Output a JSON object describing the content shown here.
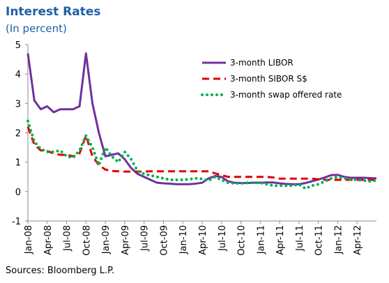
{
  "chart_data": {
    "type": "line",
    "title": "Interest Rates",
    "subtitle": "(In percent)",
    "source": "Sources: Bloomberg L.P.",
    "categories": [
      "Jan-08",
      null,
      null,
      "Apr-08",
      null,
      null,
      "Jul-08",
      null,
      null,
      "Oct-08",
      null,
      null,
      "Jan-09",
      null,
      null,
      "Apr-09",
      null,
      null,
      "Jul-09",
      null,
      null,
      "Oct-09",
      null,
      null,
      "Jan-10",
      null,
      null,
      "Apr-10",
      null,
      null,
      "Jul-10",
      null,
      null,
      "Oct-10",
      null,
      null,
      "Jan-11",
      null,
      null,
      "Apr-11",
      null,
      null,
      "Jul-11",
      null,
      null,
      "Oct-11",
      null,
      null,
      "Jan-12",
      null,
      null,
      "Apr-12",
      null,
      null,
      null
    ],
    "ylim": [
      -1,
      5
    ],
    "yticks": [
      -1,
      0,
      1,
      2,
      3,
      4,
      5
    ],
    "legend": "upper right",
    "series": [
      {
        "name": "3-month LIBOR",
        "color": "#7030a0",
        "style": "solid",
        "values": [
          4.7,
          3.1,
          2.8,
          2.9,
          2.7,
          2.8,
          2.8,
          2.8,
          2.9,
          4.7,
          3.0,
          2.0,
          1.2,
          1.25,
          1.3,
          1.1,
          0.8,
          0.6,
          0.5,
          0.4,
          0.3,
          0.28,
          0.27,
          0.25,
          0.25,
          0.25,
          0.27,
          0.3,
          0.45,
          0.53,
          0.5,
          0.35,
          0.3,
          0.29,
          0.29,
          0.3,
          0.3,
          0.31,
          0.31,
          0.28,
          0.26,
          0.25,
          0.25,
          0.29,
          0.35,
          0.41,
          0.48,
          0.56,
          0.57,
          0.5,
          0.47,
          0.47,
          0.47,
          0.46,
          0.45
        ]
      },
      {
        "name": "3-month SIBOR S$",
        "color": "#e00000",
        "style": "dashed",
        "values": [
          2.2,
          1.6,
          1.4,
          1.38,
          1.3,
          1.25,
          1.25,
          1.2,
          1.3,
          1.9,
          1.2,
          0.9,
          0.75,
          0.7,
          0.69,
          0.68,
          0.68,
          0.68,
          0.68,
          0.69,
          0.69,
          0.69,
          0.69,
          0.69,
          0.69,
          0.69,
          0.69,
          0.69,
          0.69,
          0.62,
          0.56,
          0.5,
          0.5,
          0.5,
          0.5,
          0.5,
          0.5,
          0.5,
          0.48,
          0.44,
          0.44,
          0.44,
          0.44,
          0.44,
          0.44,
          0.42,
          0.4,
          0.4,
          0.4,
          0.4,
          0.4,
          0.4,
          0.4,
          0.4,
          0.4
        ]
      },
      {
        "name": "3-month swap offered rate",
        "color": "#00b050",
        "style": "dotted",
        "values": [
          2.4,
          1.7,
          1.45,
          1.35,
          1.35,
          1.4,
          1.2,
          1.15,
          1.4,
          1.9,
          1.5,
          0.9,
          1.5,
          1.2,
          1.0,
          1.35,
          1.1,
          0.7,
          0.6,
          0.55,
          0.5,
          0.45,
          0.4,
          0.4,
          0.4,
          0.42,
          0.45,
          0.43,
          0.37,
          0.5,
          0.4,
          0.3,
          0.28,
          0.28,
          0.3,
          0.3,
          0.3,
          0.25,
          0.2,
          0.2,
          0.2,
          0.2,
          0.25,
          0.1,
          0.2,
          0.25,
          0.35,
          0.45,
          0.5,
          0.45,
          0.42,
          0.4,
          0.38,
          0.35,
          0.38
        ]
      }
    ]
  }
}
